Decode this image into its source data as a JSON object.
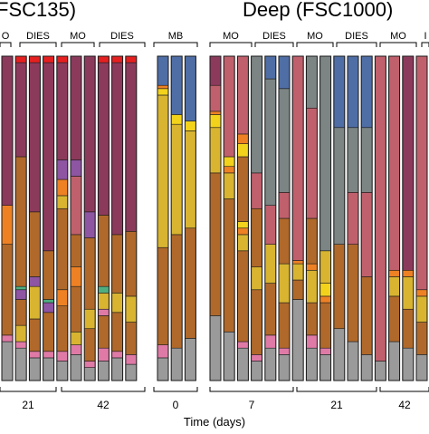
{
  "chart_data": {
    "type": "bar",
    "stacked": true,
    "normalized": true,
    "ylim": [
      0,
      100
    ],
    "xlabel": "Time (days)",
    "colors": {
      "gray": "#9a9a9a",
      "pink": "#df7aa6",
      "green": "#4fae80",
      "brown": "#b0692a",
      "gold": "#d8b431",
      "yellow": "#f3d21c",
      "orange": "#ee8124",
      "purple": "#8e55a3",
      "maroon": "#8c3a5c",
      "rose": "#c0606c",
      "slate": "#7c8484",
      "blue": "#4f6ea6",
      "red": "#e52020"
    },
    "panels": [
      {
        "title": "FSC135)",
        "groups": [
          {
            "label": "O",
            "x0": 0,
            "x1": 12
          },
          {
            "label": "DIES",
            "x0": 22,
            "x1": 62
          },
          {
            "label": "MO",
            "x0": 68,
            "x1": 104
          },
          {
            "label": "DIES",
            "x0": 110,
            "x1": 160
          }
        ],
        "timepoints": [
          {
            "label": "21",
            "x0": 0,
            "x1": 62
          },
          {
            "label": "42",
            "x0": 68,
            "x1": 160
          }
        ],
        "bars": [
          [
            [
              "gray",
              12
            ],
            [
              "pink",
              2
            ],
            [
              "brown",
              28
            ],
            [
              "orange",
              12
            ],
            [
              "maroon",
              46
            ]
          ],
          [
            [
              "gray",
              10
            ],
            [
              "pink",
              2
            ],
            [
              "gold",
              5
            ],
            [
              "brown",
              8
            ],
            [
              "purple",
              3
            ],
            [
              "green",
              1
            ],
            [
              "brown",
              40
            ],
            [
              "maroon",
              29
            ],
            [
              "red",
              2
            ]
          ],
          [
            [
              "gray",
              7
            ],
            [
              "pink",
              2
            ],
            [
              "brown",
              10
            ],
            [
              "gold",
              10
            ],
            [
              "purple",
              3
            ],
            [
              "brown",
              20
            ],
            [
              "maroon",
              46
            ],
            [
              "red",
              2
            ]
          ],
          [
            [
              "gray",
              7
            ],
            [
              "pink",
              2
            ],
            [
              "brown",
              12
            ],
            [
              "purple",
              3
            ],
            [
              "green",
              1
            ],
            [
              "brown",
              15
            ],
            [
              "maroon",
              58
            ],
            [
              "red",
              2
            ]
          ],
          [
            [
              "gray",
              6
            ],
            [
              "pink",
              3
            ],
            [
              "brown",
              14
            ],
            [
              "orange",
              5
            ],
            [
              "brown",
              25
            ],
            [
              "gold",
              4
            ],
            [
              "orange",
              5
            ],
            [
              "purple",
              6
            ],
            [
              "maroon",
              30
            ],
            [
              "red",
              2
            ]
          ],
          [
            [
              "gray",
              8
            ],
            [
              "pink",
              3
            ],
            [
              "gold",
              4
            ],
            [
              "brown",
              14
            ],
            [
              "orange",
              6
            ],
            [
              "brown",
              10
            ],
            [
              "rose",
              18
            ],
            [
              "purple",
              5
            ],
            [
              "maroon",
              32
            ]
          ],
          [
            [
              "gray",
              4
            ],
            [
              "pink",
              2
            ],
            [
              "brown",
              10
            ],
            [
              "gold",
              6
            ],
            [
              "brown",
              22
            ],
            [
              "purple",
              8
            ],
            [
              "maroon",
              48
            ]
          ],
          [
            [
              "gray",
              6
            ],
            [
              "pink",
              4
            ],
            [
              "brown",
              10
            ],
            [
              "pink",
              2
            ],
            [
              "gold",
              5
            ],
            [
              "green",
              2
            ],
            [
              "brown",
              22
            ],
            [
              "maroon",
              47
            ],
            [
              "red",
              2
            ]
          ],
          [
            [
              "gray",
              7
            ],
            [
              "pink",
              2
            ],
            [
              "brown",
              12
            ],
            [
              "gold",
              6
            ],
            [
              "brown",
              18
            ],
            [
              "maroon",
              53
            ],
            [
              "red",
              2
            ]
          ],
          [
            [
              "gray",
              5
            ],
            [
              "pink",
              3
            ],
            [
              "brown",
              10
            ],
            [
              "gold",
              8
            ],
            [
              "brown",
              20
            ],
            [
              "maroon",
              52
            ],
            [
              "red",
              2
            ]
          ]
        ]
      },
      {
        "title": "",
        "groups": [
          {
            "label": "MB",
            "x0": 170,
            "x1": 218
          }
        ],
        "timepoints": [
          {
            "label": "0",
            "x0": 170,
            "x1": 218
          }
        ],
        "bars": [
          [
            [
              "gray",
              7
            ],
            [
              "pink",
              4
            ],
            [
              "brown",
              30
            ],
            [
              "gold",
              47
            ],
            [
              "yellow",
              2
            ],
            [
              "orange",
              1
            ],
            [
              "blue",
              9
            ]
          ],
          [
            [
              "gray",
              10
            ],
            [
              "brown",
              35
            ],
            [
              "gold",
              34
            ],
            [
              "yellow",
              3
            ],
            [
              "blue",
              18
            ]
          ],
          [
            [
              "gray",
              13
            ],
            [
              "brown",
              34
            ],
            [
              "gold",
              30
            ],
            [
              "yellow",
              3
            ],
            [
              "blue",
              20
            ]
          ]
        ]
      },
      {
        "title": "Deep (FSC1000)",
        "groups": [
          {
            "label": "MO",
            "x0": 232,
            "x1": 278
          },
          {
            "label": "DIES",
            "x0": 282,
            "x1": 324
          },
          {
            "label": "MO",
            "x0": 328,
            "x1": 368
          },
          {
            "label": "DIES",
            "x0": 372,
            "x1": 416
          },
          {
            "label": "MO",
            "x0": 420,
            "x1": 460
          },
          {
            "label": "I",
            "x0": 466,
            "x1": 474
          }
        ],
        "timepoints": [
          {
            "label": "7",
            "x0": 232,
            "x1": 324
          },
          {
            "label": "21",
            "x0": 328,
            "x1": 416
          },
          {
            "label": "42",
            "x0": 420,
            "x1": 474
          }
        ],
        "bars": [
          [
            [
              "gray",
              20
            ],
            [
              "brown",
              44
            ],
            [
              "gold",
              14
            ],
            [
              "yellow",
              4
            ],
            [
              "orange",
              1
            ],
            [
              "rose",
              8
            ],
            [
              "maroon",
              9
            ]
          ],
          [
            [
              "gray",
              15
            ],
            [
              "brown",
              41
            ],
            [
              "gold",
              8
            ],
            [
              "orange",
              2
            ],
            [
              "yellow",
              3
            ],
            [
              "rose",
              31
            ]
          ],
          [
            [
              "gray",
              10
            ],
            [
              "pink",
              2
            ],
            [
              "brown",
              28
            ],
            [
              "gold",
              5
            ],
            [
              "orange",
              2
            ],
            [
              "yellow",
              2
            ],
            [
              "brown",
              20
            ],
            [
              "yellow",
              4
            ],
            [
              "orange",
              3
            ],
            [
              "rose",
              24
            ]
          ],
          [
            [
              "gray",
              6
            ],
            [
              "pink",
              2
            ],
            [
              "brown",
              20
            ],
            [
              "gold",
              7
            ],
            [
              "brown",
              18
            ],
            [
              "rose",
              11
            ],
            [
              "slate",
              36
            ]
          ],
          [
            [
              "gray",
              10
            ],
            [
              "pink",
              4
            ],
            [
              "brown",
              16
            ],
            [
              "gold",
              12
            ],
            [
              "rose",
              12
            ],
            [
              "slate",
              39
            ],
            [
              "blue",
              7
            ]
          ],
          [
            [
              "gray",
              8
            ],
            [
              "pink",
              2
            ],
            [
              "brown",
              14
            ],
            [
              "gold",
              12
            ],
            [
              "brown",
              14
            ],
            [
              "rose",
              8
            ],
            [
              "slate",
              32
            ],
            [
              "blue",
              10
            ]
          ],
          [
            [
              "gray",
              25
            ],
            [
              "brown",
              6
            ],
            [
              "gold",
              5
            ],
            [
              "orange",
              1
            ],
            [
              "rose",
              63
            ]
          ],
          [
            [
              "gray",
              10
            ],
            [
              "pink",
              4
            ],
            [
              "brown",
              10
            ],
            [
              "gold",
              10
            ],
            [
              "orange",
              2
            ],
            [
              "brown",
              14
            ],
            [
              "rose",
              34
            ],
            [
              "slate",
              16
            ]
          ],
          [
            [
              "gray",
              8
            ],
            [
              "pink",
              2
            ],
            [
              "brown",
              14
            ],
            [
              "orange",
              2
            ],
            [
              "yellow",
              4
            ],
            [
              "gold",
              10
            ],
            [
              "slate",
              60
            ]
          ],
          [
            [
              "gray",
              16
            ],
            [
              "brown",
              26
            ],
            [
              "slate",
              36
            ],
            [
              "blue",
              22
            ]
          ],
          [
            [
              "gray",
              12
            ],
            [
              "brown",
              30
            ],
            [
              "rose",
              16
            ],
            [
              "slate",
              20
            ],
            [
              "blue",
              22
            ]
          ],
          [
            [
              "gray",
              8
            ],
            [
              "brown",
              24
            ],
            [
              "rose",
              26
            ],
            [
              "slate",
              20
            ],
            [
              "blue",
              22
            ]
          ],
          [
            [
              "gray",
              6
            ],
            [
              "rose",
              94
            ]
          ],
          [
            [
              "gray",
              12
            ],
            [
              "brown",
              14
            ],
            [
              "gold",
              6
            ],
            [
              "orange",
              2
            ],
            [
              "rose",
              66
            ]
          ],
          [
            [
              "gray",
              10
            ],
            [
              "brown",
              12
            ],
            [
              "gold",
              10
            ],
            [
              "orange",
              2
            ],
            [
              "maroon",
              66
            ]
          ],
          [
            [
              "gray",
              8
            ],
            [
              "brown",
              10
            ],
            [
              "gold",
              8
            ],
            [
              "orange",
              2
            ],
            [
              "rose",
              72
            ]
          ]
        ]
      }
    ]
  }
}
